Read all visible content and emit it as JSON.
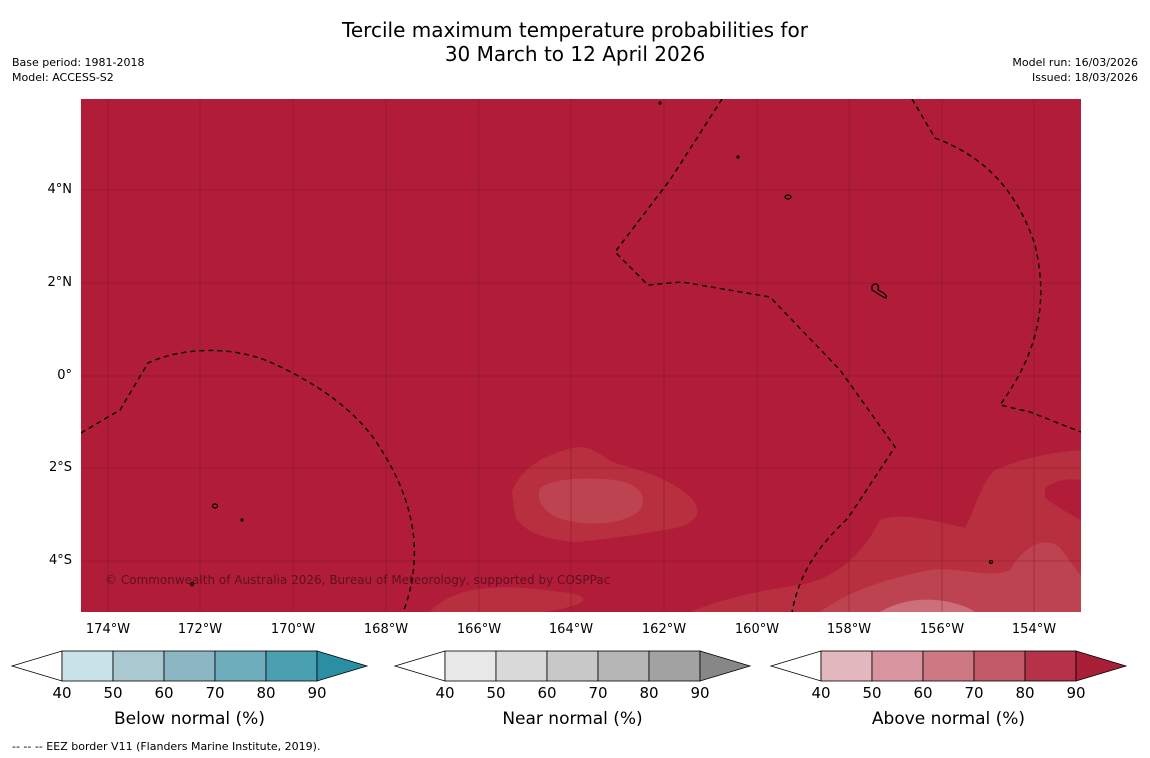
{
  "title": {
    "line1": "Tercile maximum temperature probabilities for",
    "line2": "30 March to 12 April 2026"
  },
  "meta": {
    "base_period": "Base period: 1981-2018",
    "model": "Model: ACCESS-S2",
    "model_run": "Model run: 16/03/2026",
    "issued": "Issued: 18/03/2026"
  },
  "map": {
    "background_color": "#b11d39",
    "copyright": "© Commonwealth of Australia 2026, Bureau of Meteorology, supported by COSPPac",
    "lat_labels": [
      "4°N",
      "2°N",
      "0°",
      "2°S",
      "4°S"
    ],
    "lon_labels": [
      "174°W",
      "172°W",
      "170°W",
      "168°W",
      "166°W",
      "164°W",
      "162°W",
      "160°W",
      "158°W",
      "156°W",
      "154°W"
    ]
  },
  "legends": [
    {
      "title": "Below normal (%)",
      "ticks": [
        "40",
        "50",
        "60",
        "70",
        "80",
        "90"
      ],
      "colors": [
        "#c9e2e8",
        "#a9c8cf",
        "#8bb7c4",
        "#6eadbc",
        "#4aa0b1",
        "#2b8fa3"
      ]
    },
    {
      "title": "Near normal (%)",
      "ticks": [
        "40",
        "50",
        "60",
        "70",
        "80",
        "90"
      ],
      "colors": [
        "#e8e8e8",
        "#d9d9d9",
        "#c8c8c8",
        "#b6b6b6",
        "#a2a2a2",
        "#878787"
      ]
    },
    {
      "title": "Above normal (%)",
      "ticks": [
        "40",
        "50",
        "60",
        "70",
        "80",
        "90"
      ],
      "colors": [
        "#e2b7bd",
        "#d8959f",
        "#cd7882",
        "#c25966",
        "#b63249",
        "#a91f38"
      ]
    }
  ],
  "footer": "--  --  -- EEZ border V11 (Flanders Marine Institute, 2019)."
}
